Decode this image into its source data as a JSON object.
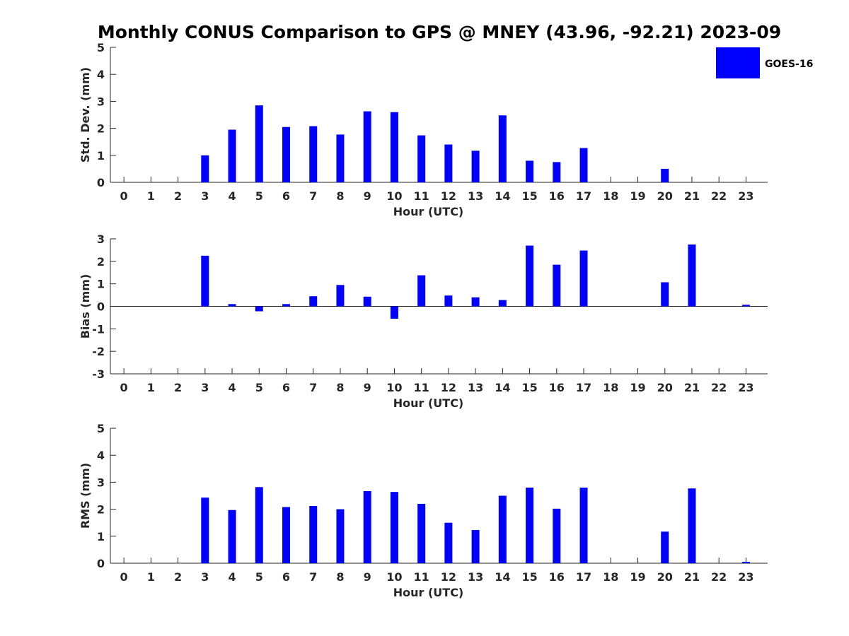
{
  "title": "Monthly CONUS Comparison to GPS @ MNEY (43.96, -92.21) 2023-09",
  "legend": {
    "label": "GOES-16",
    "color": "#0000ff"
  },
  "chart_data": [
    {
      "type": "bar",
      "ylabel": "Std. Dev. (mm)",
      "xlabel": "Hour (UTC)",
      "x": [
        0,
        1,
        2,
        3,
        4,
        5,
        6,
        7,
        8,
        9,
        10,
        11,
        12,
        13,
        14,
        15,
        16,
        17,
        18,
        19,
        20,
        21,
        22,
        23
      ],
      "ylim": [
        0,
        5
      ],
      "yticks": [
        0,
        1,
        2,
        3,
        4,
        5
      ],
      "series": [
        {
          "name": "GOES-16",
          "values": [
            null,
            null,
            null,
            1.0,
            1.95,
            2.85,
            2.05,
            2.08,
            1.77,
            2.63,
            2.6,
            1.74,
            1.4,
            1.17,
            2.48,
            0.8,
            0.75,
            1.27,
            null,
            null,
            0.5,
            null,
            null,
            null
          ]
        }
      ]
    },
    {
      "type": "bar",
      "ylabel": "Bias (mm)",
      "xlabel": "Hour (UTC)",
      "x": [
        0,
        1,
        2,
        3,
        4,
        5,
        6,
        7,
        8,
        9,
        10,
        11,
        12,
        13,
        14,
        15,
        16,
        17,
        18,
        19,
        20,
        21,
        22,
        23
      ],
      "ylim": [
        -3,
        3
      ],
      "yticks": [
        -3,
        -2,
        -1,
        0,
        1,
        2,
        3
      ],
      "series": [
        {
          "name": "GOES-16",
          "values": [
            null,
            null,
            null,
            2.25,
            0.1,
            -0.22,
            0.1,
            0.45,
            0.95,
            0.43,
            -0.55,
            1.38,
            0.48,
            0.4,
            0.28,
            2.7,
            1.85,
            2.48,
            null,
            null,
            1.07,
            2.75,
            null,
            0.07
          ]
        }
      ]
    },
    {
      "type": "bar",
      "ylabel": "RMS (mm)",
      "xlabel": "Hour (UTC)",
      "x": [
        0,
        1,
        2,
        3,
        4,
        5,
        6,
        7,
        8,
        9,
        10,
        11,
        12,
        13,
        14,
        15,
        16,
        17,
        18,
        19,
        20,
        21,
        22,
        23
      ],
      "ylim": [
        0,
        5
      ],
      "yticks": [
        0,
        1,
        2,
        3,
        4,
        5
      ],
      "series": [
        {
          "name": "GOES-16",
          "values": [
            null,
            null,
            null,
            2.43,
            1.97,
            2.82,
            2.08,
            2.12,
            2.0,
            2.67,
            2.64,
            2.2,
            1.5,
            1.23,
            2.5,
            2.8,
            2.02,
            2.8,
            null,
            null,
            1.17,
            2.77,
            null,
            0.05
          ]
        }
      ]
    }
  ]
}
